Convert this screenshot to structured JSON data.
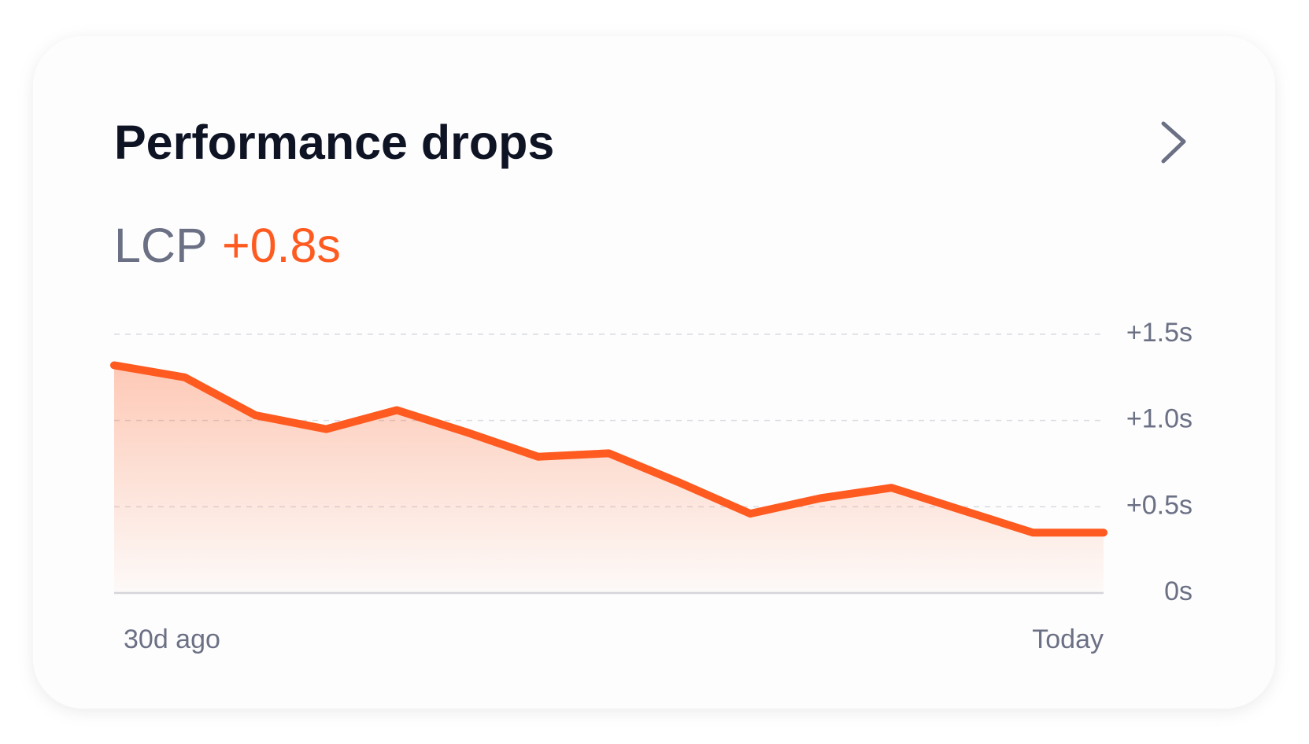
{
  "card": {
    "title": "Performance drops",
    "metric": "LCP",
    "delta": "+0.8s"
  },
  "chart_data": {
    "type": "area-line",
    "categories": [
      "30d ago",
      null,
      null,
      null,
      null,
      null,
      null,
      null,
      null,
      null,
      null,
      null,
      null,
      null,
      "Today"
    ],
    "values": [
      1.32,
      1.25,
      1.03,
      0.95,
      1.06,
      0.93,
      0.79,
      0.81,
      0.64,
      0.46,
      0.55,
      0.61,
      0.48,
      0.35,
      0.35
    ],
    "color": "#ff5a1f",
    "ylim": [
      0,
      1.5
    ],
    "yticks": [
      {
        "value": 0,
        "label": "0s"
      },
      {
        "value": 0.5,
        "label": "+0.5s"
      },
      {
        "value": 1.0,
        "label": "+1.0s"
      },
      {
        "value": 1.5,
        "label": "+1.5s"
      }
    ],
    "grid": true
  }
}
